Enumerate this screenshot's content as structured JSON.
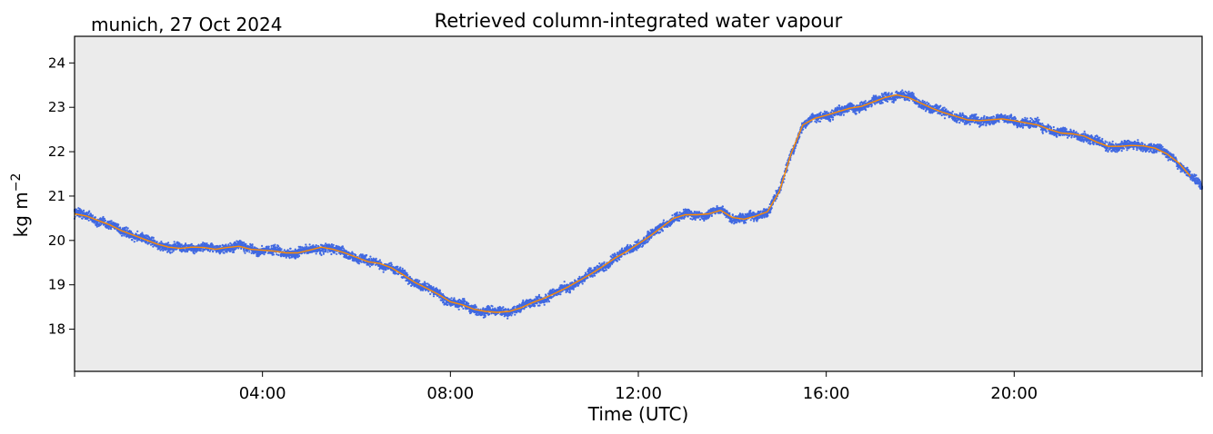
{
  "chart_data": {
    "type": "scatter",
    "title": "Retrieved column-integrated water vapour",
    "location_date": "munich, 27 Oct 2024",
    "xlabel": "Time (UTC)",
    "ylabel_main": "kg m",
    "ylabel_sup": "−2",
    "x_unit": "hours UTC",
    "xlim": [
      0.0,
      24.0
    ],
    "ylim": [
      17.05,
      24.6
    ],
    "x_ticks": [
      {
        "value": 0,
        "label": ""
      },
      {
        "value": 4,
        "label": "04:00"
      },
      {
        "value": 8,
        "label": "08:00"
      },
      {
        "value": 12,
        "label": "12:00"
      },
      {
        "value": 16,
        "label": "16:00"
      },
      {
        "value": 20,
        "label": "20:00"
      },
      {
        "value": 24,
        "label": ""
      }
    ],
    "y_ticks": [
      {
        "value": 18,
        "label": "18"
      },
      {
        "value": 19,
        "label": "19"
      },
      {
        "value": 20,
        "label": "20"
      },
      {
        "value": 21,
        "label": "21"
      },
      {
        "value": 22,
        "label": "22"
      },
      {
        "value": 23,
        "label": "23"
      },
      {
        "value": 24,
        "label": "24"
      }
    ],
    "plot_background": "#ebebeb",
    "grid": false,
    "series": [
      {
        "kind": "scatter-raw",
        "color": "#4169e1",
        "scatter_spread": 0.14,
        "x": [
          0.0,
          0.25,
          0.5,
          0.75,
          1.0,
          1.25,
          1.5,
          1.75,
          2.0,
          2.25,
          2.5,
          2.75,
          3.0,
          3.25,
          3.5,
          3.75,
          4.0,
          4.25,
          4.5,
          4.75,
          5.0,
          5.25,
          5.5,
          5.75,
          6.0,
          6.25,
          6.5,
          6.75,
          7.0,
          7.25,
          7.5,
          7.75,
          8.0,
          8.25,
          8.5,
          8.75,
          9.0,
          9.25,
          9.5,
          9.75,
          10.0,
          10.25,
          10.5,
          10.75,
          11.0,
          11.25,
          11.5,
          11.75,
          12.0,
          12.25,
          12.5,
          12.75,
          13.0,
          13.25,
          13.5,
          13.75,
          14.0,
          14.25,
          14.5,
          14.75,
          15.0,
          15.25,
          15.5,
          15.75,
          16.0,
          16.25,
          16.5,
          16.75,
          17.0,
          17.25,
          17.5,
          17.75,
          18.0,
          18.25,
          18.5,
          18.75,
          19.0,
          19.25,
          19.5,
          19.75,
          20.0,
          20.25,
          20.5,
          20.75,
          21.0,
          21.25,
          21.5,
          21.75,
          22.0,
          22.25,
          22.5,
          22.75,
          23.0,
          23.25,
          23.5,
          23.75,
          24.0
        ],
        "y": [
          20.62,
          20.55,
          20.45,
          20.35,
          20.22,
          20.12,
          20.02,
          19.92,
          19.85,
          19.82,
          19.85,
          19.84,
          19.8,
          19.84,
          19.87,
          19.8,
          19.78,
          19.76,
          19.72,
          19.72,
          19.78,
          19.85,
          19.8,
          19.72,
          19.62,
          19.52,
          19.48,
          19.38,
          19.22,
          19.05,
          18.92,
          18.78,
          18.62,
          18.55,
          18.45,
          18.4,
          18.38,
          18.4,
          18.48,
          18.6,
          18.7,
          18.82,
          18.95,
          19.1,
          19.25,
          19.42,
          19.6,
          19.75,
          19.92,
          20.1,
          20.3,
          20.5,
          20.58,
          20.58,
          20.6,
          20.68,
          20.52,
          20.48,
          20.55,
          20.65,
          21.1,
          21.95,
          22.6,
          22.75,
          22.82,
          22.9,
          22.98,
          23.02,
          23.12,
          23.22,
          23.28,
          23.22,
          23.1,
          22.98,
          22.88,
          22.8,
          22.72,
          22.7,
          22.72,
          22.74,
          22.7,
          22.65,
          22.6,
          22.5,
          22.42,
          22.4,
          22.35,
          22.22,
          22.12,
          22.12,
          22.14,
          22.13,
          22.08,
          21.95,
          21.75,
          21.45,
          21.2
        ]
      },
      {
        "kind": "smoothed-line",
        "color": "#ff8c00",
        "x": [
          0.0,
          0.25,
          0.5,
          0.75,
          1.0,
          1.25,
          1.5,
          1.75,
          2.0,
          2.25,
          2.5,
          2.75,
          3.0,
          3.25,
          3.5,
          3.75,
          4.0,
          4.25,
          4.5,
          4.75,
          5.0,
          5.25,
          5.5,
          5.75,
          6.0,
          6.25,
          6.5,
          6.75,
          7.0,
          7.25,
          7.5,
          7.75,
          8.0,
          8.25,
          8.5,
          8.75,
          9.0,
          9.25,
          9.5,
          9.75,
          10.0,
          10.25,
          10.5,
          10.75,
          11.0,
          11.25,
          11.5,
          11.75,
          12.0,
          12.25,
          12.5,
          12.75,
          13.0,
          13.25,
          13.5,
          13.75,
          14.0,
          14.25,
          14.5,
          14.75,
          15.0,
          15.25,
          15.5,
          15.75,
          16.0,
          16.25,
          16.5,
          16.75,
          17.0,
          17.25,
          17.5,
          17.75,
          18.0,
          18.25,
          18.5,
          18.75,
          19.0,
          19.25,
          19.5,
          19.75,
          20.0,
          20.25,
          20.5,
          20.75,
          21.0,
          21.25,
          21.5,
          21.75,
          22.0,
          22.25,
          22.5,
          22.75,
          23.0,
          23.25,
          23.5,
          23.75
        ],
        "y": [
          20.6,
          20.55,
          20.45,
          20.35,
          20.22,
          20.12,
          20.02,
          19.92,
          19.85,
          19.82,
          19.85,
          19.84,
          19.8,
          19.84,
          19.87,
          19.8,
          19.78,
          19.76,
          19.72,
          19.72,
          19.78,
          19.85,
          19.8,
          19.72,
          19.62,
          19.52,
          19.48,
          19.38,
          19.22,
          19.05,
          18.92,
          18.78,
          18.62,
          18.55,
          18.45,
          18.4,
          18.38,
          18.4,
          18.48,
          18.6,
          18.7,
          18.82,
          18.95,
          19.1,
          19.25,
          19.42,
          19.6,
          19.75,
          19.92,
          20.1,
          20.3,
          20.5,
          20.58,
          20.58,
          20.6,
          20.68,
          20.52,
          20.48,
          20.55,
          20.65,
          21.1,
          21.95,
          22.6,
          22.75,
          22.82,
          22.9,
          22.98,
          23.02,
          23.12,
          23.22,
          23.28,
          23.22,
          23.1,
          22.98,
          22.88,
          22.8,
          22.72,
          22.7,
          22.72,
          22.74,
          22.7,
          22.65,
          22.6,
          22.5,
          22.42,
          22.4,
          22.35,
          22.22,
          22.12,
          22.12,
          22.14,
          22.13,
          22.08,
          21.95,
          21.75,
          21.45
        ]
      }
    ]
  }
}
